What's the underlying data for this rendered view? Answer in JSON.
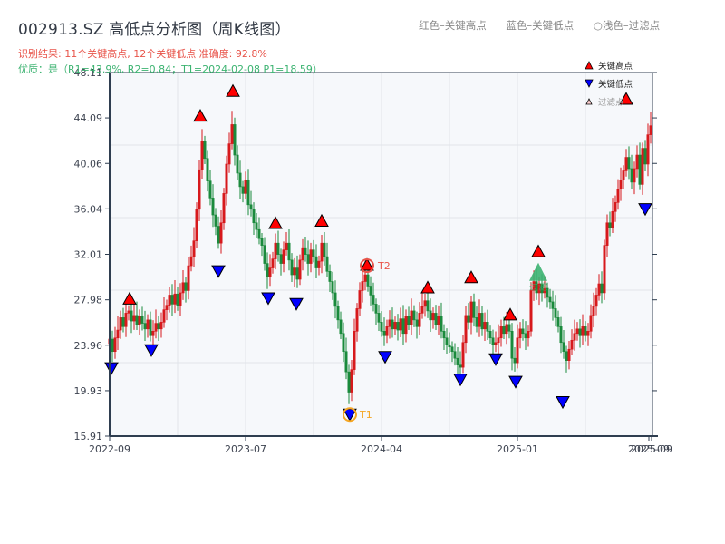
{
  "header": {
    "title": "002913.SZ 高低点分析图（周K线图）",
    "result_line": "识别结果: 11个关键高点, 12个关键低点  准确度: 92.8%",
    "quality_line": "优质：是（R1=43.9%, R2=0.84；T1=2024-02-08 P1=18.59）"
  },
  "top_legend": {
    "red": "红色–关键高点",
    "blue": "蓝色–关键低点",
    "light": "○浅色–过滤点"
  },
  "colors": {
    "up": "#d7191c",
    "down": "#1a8a3c",
    "high_marker": "#ff0000",
    "low_marker": "#0000ff",
    "filtered_marker": "#3cb371",
    "t1_ring": "#f5a623",
    "t2_ring": "#e8544a",
    "plot_bg": "#f6f8fb",
    "grid": "#e1e4ea",
    "axis": "#2f3e50"
  },
  "chart_data": {
    "type": "candlestick",
    "title": "002913.SZ 高低点分析图（周K线图）",
    "xlabel": "",
    "ylabel": "",
    "ylim": [
      15.91,
      48.11
    ],
    "y_ticks": [
      15.91,
      19.93,
      23.96,
      27.98,
      32.01,
      36.04,
      40.06,
      44.09,
      48.11
    ],
    "x_ticks": [
      "2022-09",
      "2023-07",
      "2024-04",
      "2025-01",
      "2025-09",
      "2025-09"
    ],
    "grid": true,
    "legend": {
      "position": "top-right",
      "entries": [
        "关键高点",
        "关键低点",
        "过滤点"
      ]
    },
    "key_highs": [
      {
        "x": 143,
        "price": 27.6
      },
      {
        "x": 221,
        "price": 43.8
      },
      {
        "x": 257,
        "price": 46.0
      },
      {
        "x": 304,
        "price": 34.3
      },
      {
        "x": 355,
        "price": 34.5
      },
      {
        "x": 405,
        "price": 30.6
      },
      {
        "x": 472,
        "price": 28.6
      },
      {
        "x": 520,
        "price": 29.5
      },
      {
        "x": 563,
        "price": 26.2
      },
      {
        "x": 594,
        "price": 31.8
      },
      {
        "x": 691,
        "price": 45.3
      }
    ],
    "key_lows": [
      {
        "x": 123,
        "price": 22.4
      },
      {
        "x": 167,
        "price": 24.0
      },
      {
        "x": 241,
        "price": 31.0
      },
      {
        "x": 296,
        "price": 28.6
      },
      {
        "x": 327,
        "price": 28.1
      },
      {
        "x": 386,
        "price": 18.3
      },
      {
        "x": 425,
        "price": 23.4
      },
      {
        "x": 508,
        "price": 21.4
      },
      {
        "x": 547,
        "price": 23.2
      },
      {
        "x": 569,
        "price": 21.2
      },
      {
        "x": 621,
        "price": 19.4
      },
      {
        "x": 712,
        "price": 36.5
      }
    ],
    "filtered_points": [
      {
        "x": 594,
        "price": 30.3,
        "label": "过滤"
      }
    ],
    "annotations": [
      {
        "label": "T1",
        "x": 386,
        "price": 18.3,
        "date": "2024-02-08",
        "value": 18.59
      },
      {
        "label": "T2",
        "x": 405,
        "price": 30.6
      }
    ],
    "candles_close_path": [
      [
        121,
        24.5
      ],
      [
        124,
        23.4
      ],
      [
        127,
        24.6
      ],
      [
        130,
        25.3
      ],
      [
        133,
        26.4
      ],
      [
        136,
        25.6
      ],
      [
        139,
        26.8
      ],
      [
        142,
        27.0
      ],
      [
        145,
        26.1
      ],
      [
        148,
        26.6
      ],
      [
        151,
        25.8
      ],
      [
        154,
        26.5
      ],
      [
        157,
        25.9
      ],
      [
        160,
        25.4
      ],
      [
        163,
        26.2
      ],
      [
        166,
        24.8
      ],
      [
        169,
        25.2
      ],
      [
        172,
        25.9
      ],
      [
        175,
        25.4
      ],
      [
        178,
        26.0
      ],
      [
        181,
        27.1
      ],
      [
        184,
        27.5
      ],
      [
        187,
        28.4
      ],
      [
        190,
        27.6
      ],
      [
        193,
        28.5
      ],
      [
        196,
        27.5
      ],
      [
        199,
        28.6
      ],
      [
        202,
        29.5
      ],
      [
        205,
        28.8
      ],
      [
        208,
        31.0
      ],
      [
        211,
        31.8
      ],
      [
        214,
        33.2
      ],
      [
        217,
        36.0
      ],
      [
        220,
        39.5
      ],
      [
        223,
        42.0
      ],
      [
        226,
        40.5
      ],
      [
        229,
        38.5
      ],
      [
        232,
        37.0
      ],
      [
        235,
        35.5
      ],
      [
        238,
        34.5
      ],
      [
        241,
        33.0
      ],
      [
        244,
        34.8
      ],
      [
        247,
        37.4
      ],
      [
        250,
        40.0
      ],
      [
        253,
        41.8
      ],
      [
        256,
        43.5
      ],
      [
        259,
        40.8
      ],
      [
        262,
        39.2
      ],
      [
        265,
        38.0
      ],
      [
        268,
        37.4
      ],
      [
        271,
        38.6
      ],
      [
        274,
        36.4
      ],
      [
        277,
        36.0
      ],
      [
        280,
        34.8
      ],
      [
        283,
        34.2
      ],
      [
        286,
        33.4
      ],
      [
        289,
        32.8
      ],
      [
        292,
        31.2
      ],
      [
        295,
        30.0
      ],
      [
        298,
        30.8
      ],
      [
        301,
        31.6
      ],
      [
        304,
        33.0
      ],
      [
        307,
        32.0
      ],
      [
        310,
        31.2
      ],
      [
        313,
        32.4
      ],
      [
        316,
        33.0
      ],
      [
        319,
        31.5
      ],
      [
        322,
        30.2
      ],
      [
        325,
        30.8
      ],
      [
        328,
        29.8
      ],
      [
        331,
        31.5
      ],
      [
        334,
        32.6
      ],
      [
        337,
        32.0
      ],
      [
        340,
        31.2
      ],
      [
        343,
        32.4
      ],
      [
        346,
        31.8
      ],
      [
        349,
        30.8
      ],
      [
        352,
        31.4
      ],
      [
        355,
        33.0
      ],
      [
        358,
        31.8
      ],
      [
        361,
        30.5
      ],
      [
        364,
        29.6
      ],
      [
        367,
        28.6
      ],
      [
        370,
        27.4
      ],
      [
        373,
        26.2
      ],
      [
        376,
        25.0
      ],
      [
        379,
        23.4
      ],
      [
        382,
        21.6
      ],
      [
        385,
        19.8
      ],
      [
        388,
        21.8
      ],
      [
        391,
        25.2
      ],
      [
        394,
        27.2
      ],
      [
        397,
        28.8
      ],
      [
        400,
        29.6
      ],
      [
        403,
        30.2
      ],
      [
        406,
        29.2
      ],
      [
        409,
        28.4
      ],
      [
        412,
        27.6
      ],
      [
        415,
        26.8
      ],
      [
        418,
        26.0
      ],
      [
        421,
        25.2
      ],
      [
        424,
        24.8
      ],
      [
        427,
        25.6
      ],
      [
        430,
        26.2
      ],
      [
        433,
        25.4
      ],
      [
        436,
        26.0
      ],
      [
        439,
        25.3
      ],
      [
        442,
        26.3
      ],
      [
        445,
        25.0
      ],
      [
        448,
        26.5
      ],
      [
        451,
        25.8
      ],
      [
        454,
        27.0
      ],
      [
        457,
        26.2
      ],
      [
        460,
        25.6
      ],
      [
        463,
        26.8
      ],
      [
        466,
        27.4
      ],
      [
        469,
        27.9
      ],
      [
        472,
        27.0
      ],
      [
        475,
        26.2
      ],
      [
        478,
        26.8
      ],
      [
        481,
        25.8
      ],
      [
        484,
        26.5
      ],
      [
        487,
        25.2
      ],
      [
        490,
        24.6
      ],
      [
        493,
        24.0
      ],
      [
        496,
        23.8
      ],
      [
        499,
        23.4
      ],
      [
        502,
        22.8
      ],
      [
        505,
        22.2
      ],
      [
        508,
        22.0
      ],
      [
        511,
        24.2
      ],
      [
        514,
        26.6
      ],
      [
        517,
        26.0
      ],
      [
        520,
        27.8
      ],
      [
        523,
        26.4
      ],
      [
        526,
        25.6
      ],
      [
        529,
        26.8
      ],
      [
        532,
        25.4
      ],
      [
        535,
        26.0
      ],
      [
        538,
        25.2
      ],
      [
        541,
        24.6
      ],
      [
        544,
        24.0
      ],
      [
        547,
        24.2
      ],
      [
        550,
        24.6
      ],
      [
        553,
        25.6
      ],
      [
        556,
        25.0
      ],
      [
        559,
        25.8
      ],
      [
        562,
        25.2
      ],
      [
        565,
        22.8
      ],
      [
        568,
        22.4
      ],
      [
        571,
        24.6
      ],
      [
        574,
        25.4
      ],
      [
        577,
        25.0
      ],
      [
        580,
        24.6
      ],
      [
        583,
        25.2
      ],
      [
        586,
        28.8
      ],
      [
        589,
        29.6
      ],
      [
        592,
        28.6
      ],
      [
        595,
        29.4
      ],
      [
        598,
        28.6
      ],
      [
        601,
        29.0
      ],
      [
        604,
        28.2
      ],
      [
        607,
        27.8
      ],
      [
        610,
        27.2
      ],
      [
        613,
        26.4
      ],
      [
        616,
        25.6
      ],
      [
        619,
        24.2
      ],
      [
        622,
        23.4
      ],
      [
        625,
        22.6
      ],
      [
        628,
        23.6
      ],
      [
        631,
        24.4
      ],
      [
        634,
        25.0
      ],
      [
        637,
        25.4
      ],
      [
        640,
        24.8
      ],
      [
        643,
        25.6
      ],
      [
        646,
        24.8
      ],
      [
        649,
        25.2
      ],
      [
        652,
        26.6
      ],
      [
        655,
        27.4
      ],
      [
        658,
        28.4
      ],
      [
        661,
        29.4
      ],
      [
        664,
        28.6
      ],
      [
        667,
        32.8
      ],
      [
        670,
        34.8
      ],
      [
        673,
        34.4
      ],
      [
        676,
        35.8
      ],
      [
        679,
        36.6
      ],
      [
        682,
        37.8
      ],
      [
        685,
        38.6
      ],
      [
        688,
        39.4
      ],
      [
        691,
        40.6
      ],
      [
        694,
        39.6
      ],
      [
        697,
        38.4
      ],
      [
        700,
        39.6
      ],
      [
        703,
        40.8
      ],
      [
        706,
        38.2
      ],
      [
        709,
        41.4
      ],
      [
        712,
        40.0
      ],
      [
        715,
        42.6
      ],
      [
        718,
        43.4
      ]
    ]
  }
}
